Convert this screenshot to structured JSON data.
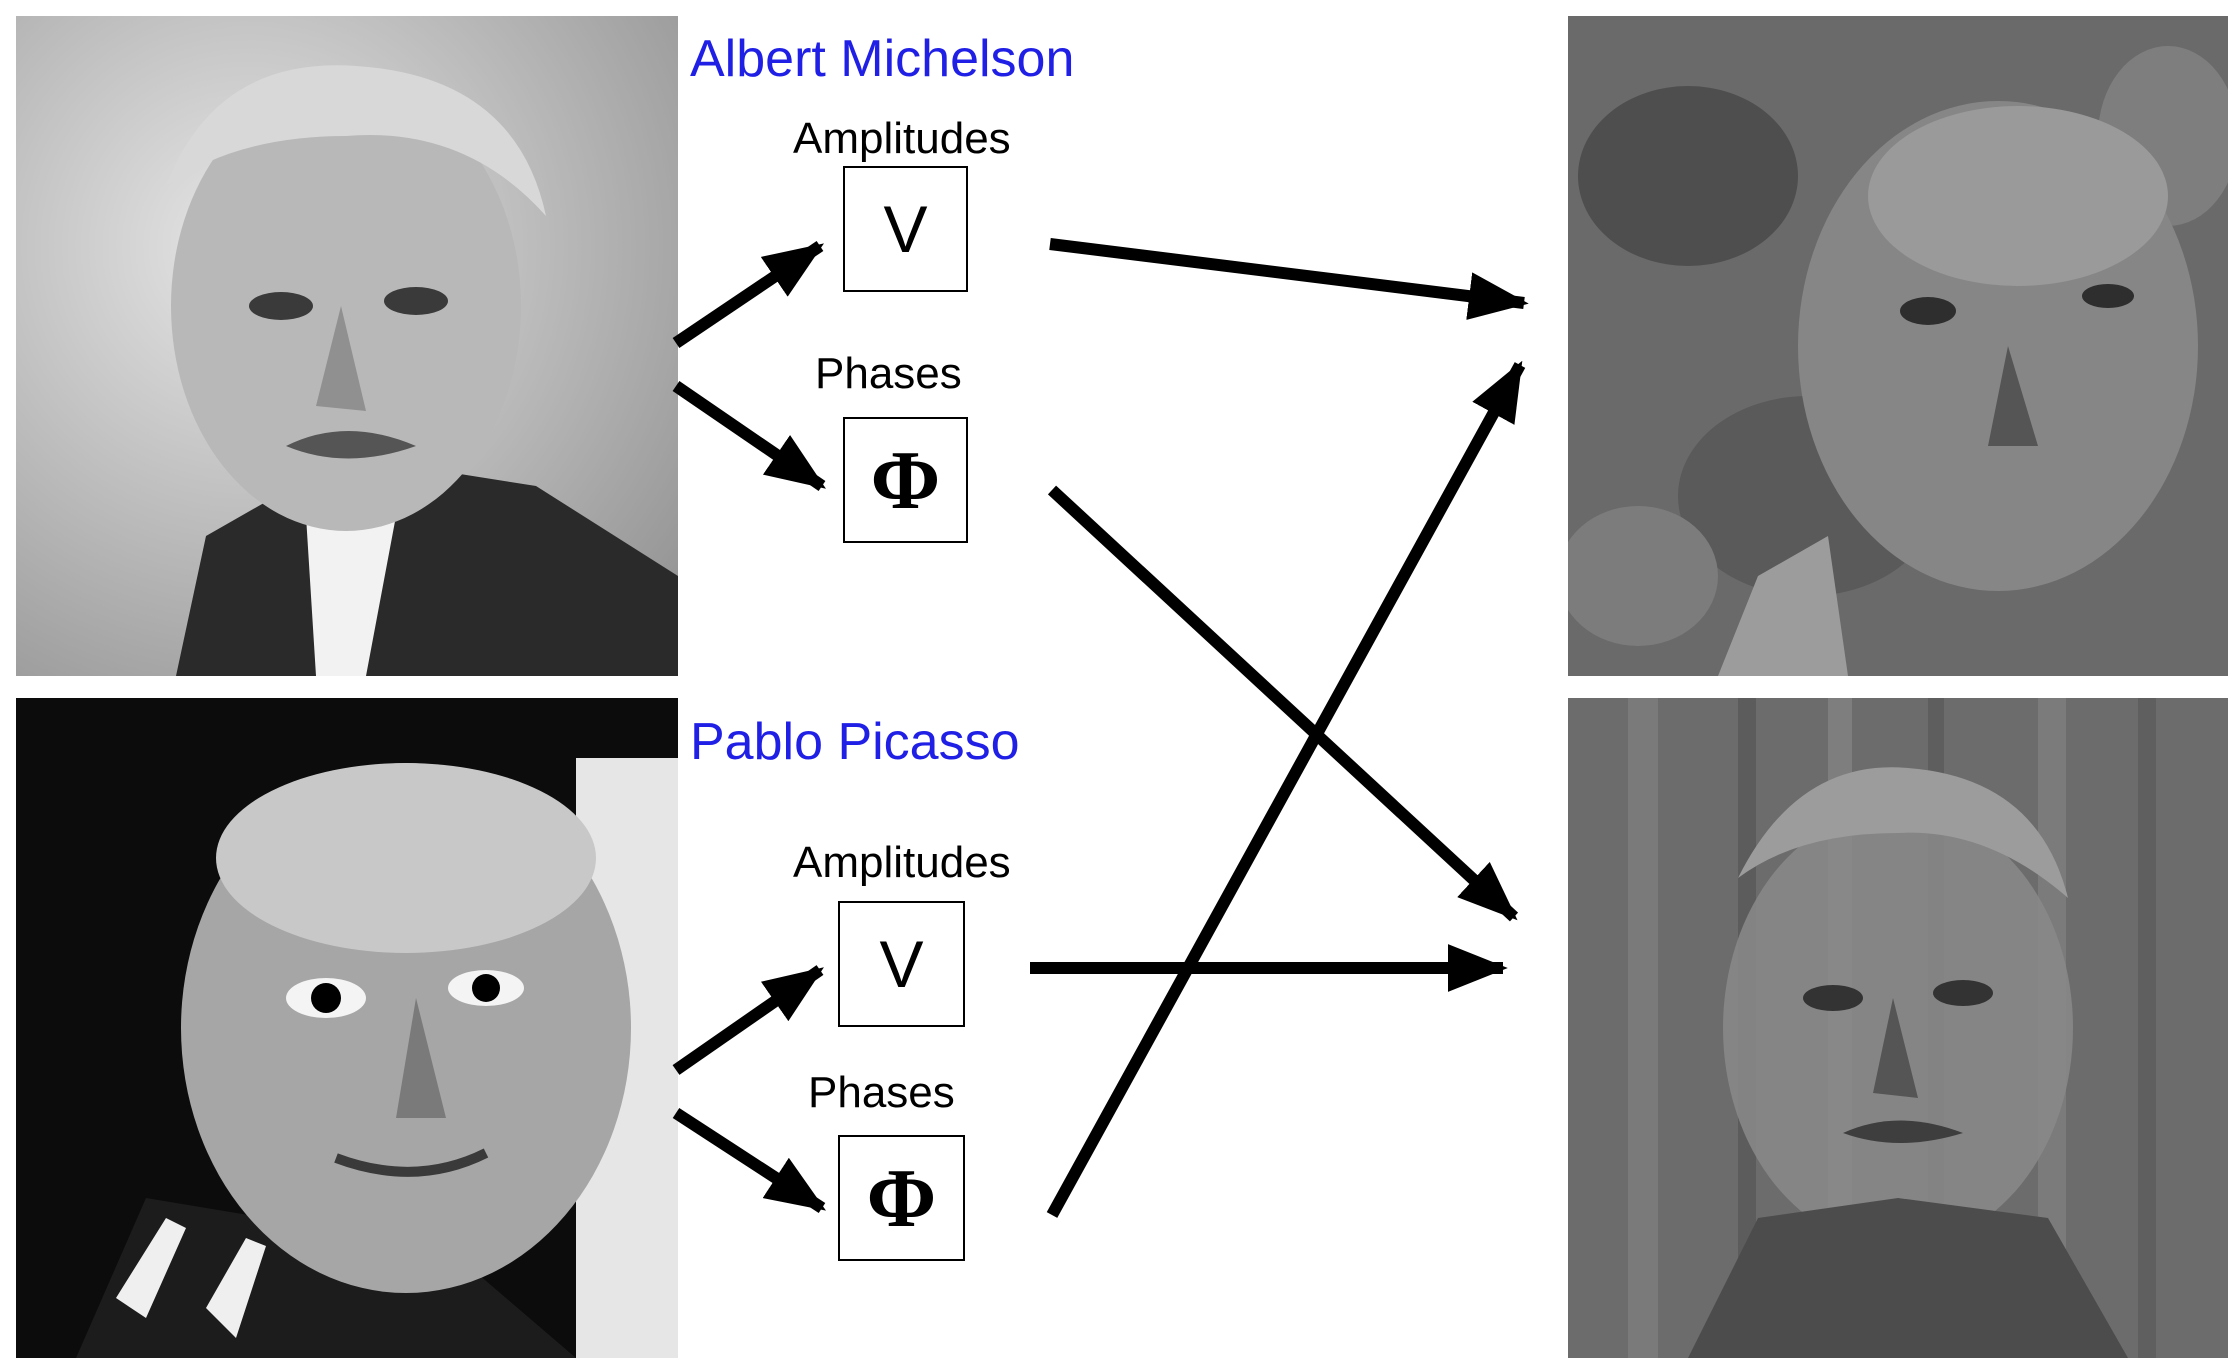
{
  "people": {
    "top": {
      "name": "Albert Michelson"
    },
    "bottom": {
      "name": "Pablo Picasso"
    }
  },
  "captions": {
    "amplitudes": "Amplitudes",
    "phases": "Phases"
  },
  "symbols": {
    "amplitude": "V",
    "phase": "Φ"
  },
  "colors": {
    "name_label": "#1f1fe6",
    "arrow": "#000000"
  }
}
